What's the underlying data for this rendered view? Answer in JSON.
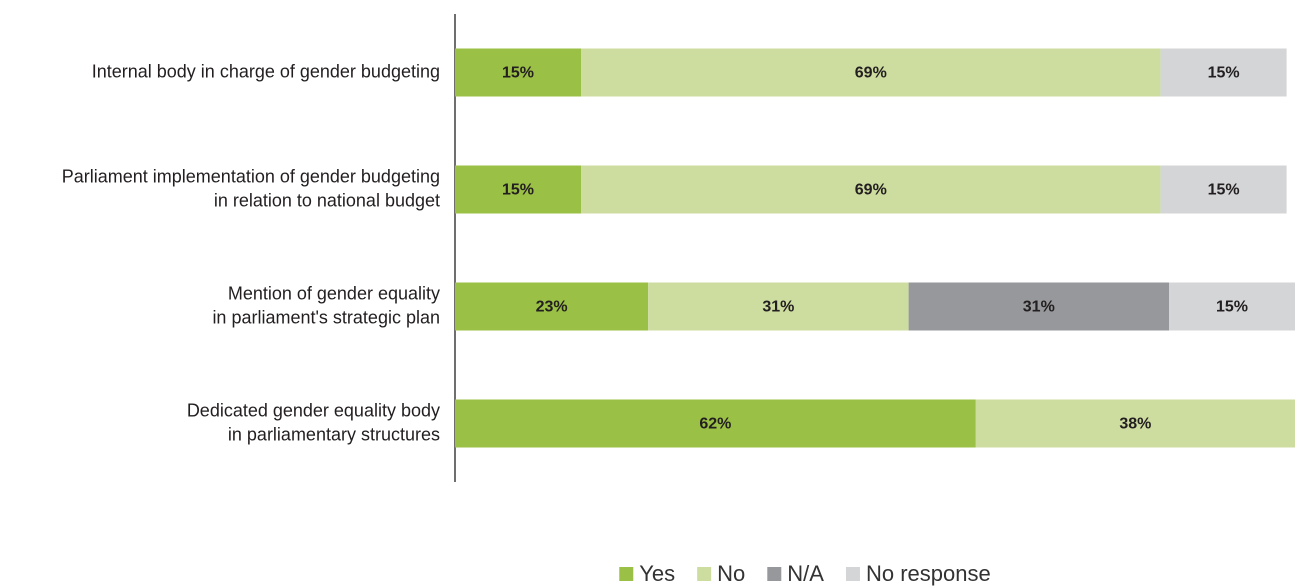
{
  "chart_data": {
    "type": "stacked-bar-horizontal",
    "categories": [
      [
        "Internal body in charge of gender budgeting"
      ],
      [
        "Parliament implementation of gender budgeting",
        "in relation to national budget"
      ],
      [
        "Mention of gender equality",
        "in parliament's strategic plan"
      ],
      [
        "Dedicated gender equality body",
        "in parliamentary structures"
      ]
    ],
    "series": [
      {
        "name": "Yes",
        "color": "#9bc046",
        "values": [
          15,
          15,
          23,
          62
        ],
        "value_labels": [
          "15%",
          "15%",
          "23%",
          "62%"
        ]
      },
      {
        "name": "No",
        "color": "#cddc9f",
        "values": [
          69,
          69,
          31,
          38
        ],
        "value_labels": [
          "69%",
          "69%",
          "31%",
          "38%"
        ]
      },
      {
        "name": "N/A",
        "color": "#97989b",
        "values": [
          null,
          null,
          31,
          null
        ],
        "value_labels": [
          null,
          null,
          "31%",
          null
        ]
      },
      {
        "name": "No response",
        "color": "#d4d5d7",
        "values": [
          15,
          15,
          15,
          null
        ],
        "value_labels": [
          "15%",
          "15%",
          "15%",
          null
        ]
      }
    ],
    "xlim": [
      0,
      100
    ],
    "legend": "bottom"
  }
}
